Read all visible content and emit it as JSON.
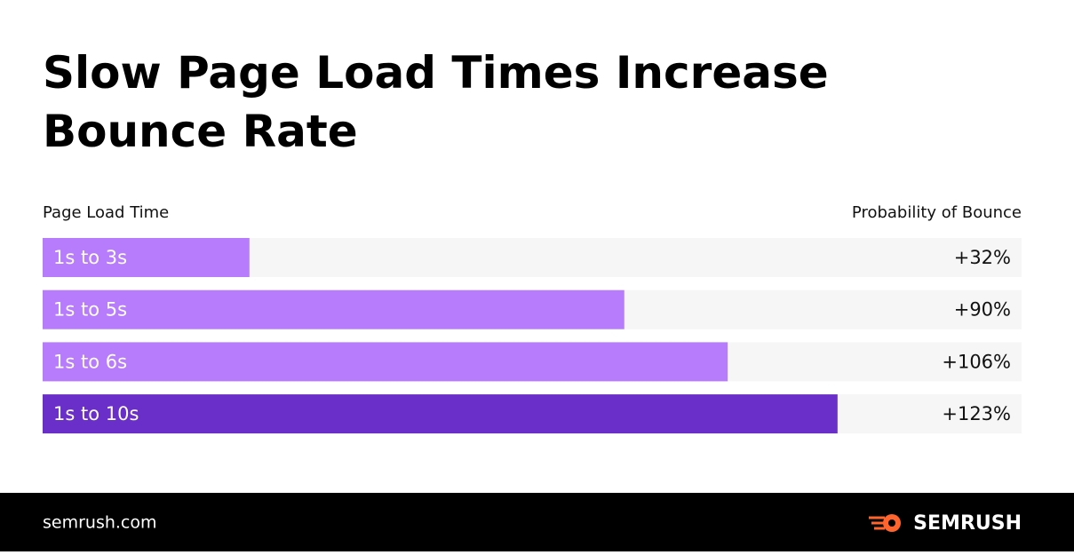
{
  "chart_data": {
    "type": "bar",
    "orientation": "horizontal",
    "title": "Slow Page Load Times Increase Bounce Rate",
    "category_header": "Page Load Time",
    "value_header": "Probability of Bounce",
    "categories": [
      "1s to 3s",
      "1s to 5s",
      "1s to 6s",
      "1s to 10s"
    ],
    "values": [
      32,
      90,
      106,
      123
    ],
    "value_labels": [
      "+32%",
      "+90%",
      "+106%",
      "+123%"
    ],
    "colors": [
      "#b77cfb",
      "#b77cfb",
      "#b77cfb",
      "#6a2fc8"
    ],
    "track_color": "#f6f6f6"
  },
  "footer": {
    "site": "semrush.com",
    "brand": "SEMRUSH"
  }
}
